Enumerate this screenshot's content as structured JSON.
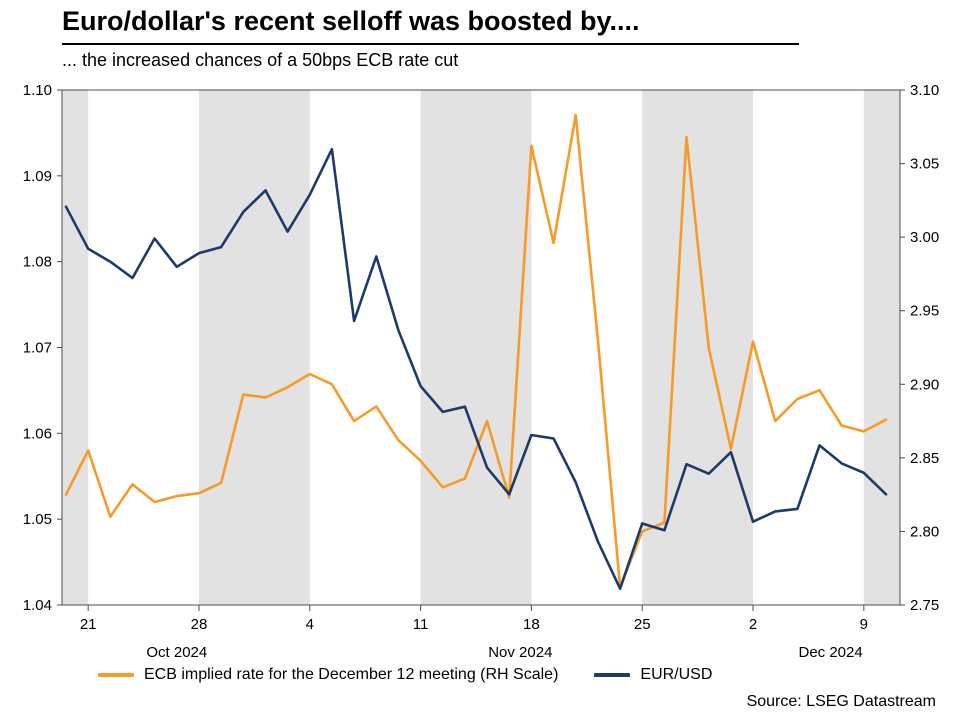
{
  "header": {
    "title": "Euro/dollar's recent selloff was boosted by....",
    "subtitle": "... the increased chances of a 50bps ECB rate cut"
  },
  "footer": {
    "source": "Source: LSEG Datastream"
  },
  "chart_data": {
    "type": "line",
    "title": "Euro/dollar's recent selloff was boosted by....",
    "subtitle": "... the increased chances of a 50bps ECB rate cut",
    "source": "Source: LSEG Datastream",
    "x_dates": [
      "Oct 18",
      "Oct 21",
      "Oct 22",
      "Oct 23",
      "Oct 24",
      "Oct 25",
      "Oct 28",
      "Oct 29",
      "Oct 30",
      "Oct 31",
      "Nov 1",
      "Nov 4",
      "Nov 5",
      "Nov 6",
      "Nov 7",
      "Nov 8",
      "Nov 11",
      "Nov 12",
      "Nov 13",
      "Nov 14",
      "Nov 15",
      "Nov 18",
      "Nov 19",
      "Nov 20",
      "Nov 21",
      "Nov 22",
      "Nov 25",
      "Nov 26",
      "Nov 27",
      "Nov 28",
      "Nov 29",
      "Dec 2",
      "Dec 3",
      "Dec 4",
      "Dec 5",
      "Dec 6",
      "Dec 9",
      "Dec 10"
    ],
    "series": [
      {
        "name": "ECB implied rate for the December 12 meeting (RH Scale)",
        "axis": "right",
        "color": "#F79B28",
        "values": [
          2.825,
          2.855,
          2.81,
          2.832,
          2.82,
          2.824,
          2.826,
          2.833,
          2.893,
          2.891,
          2.898,
          2.907,
          2.9,
          2.875,
          2.885,
          2.862,
          2.848,
          2.83,
          2.836,
          2.875,
          2.823,
          3.062,
          2.996,
          3.083,
          2.93,
          2.762,
          2.8,
          2.806,
          3.068,
          2.925,
          2.856,
          2.929,
          2.875,
          2.89,
          2.896,
          2.872,
          2.868,
          2.876
        ]
      },
      {
        "name": "EUR/USD",
        "axis": "left",
        "color": "#1C3A6A",
        "values": [
          1.0864,
          1.0815,
          1.08,
          1.0781,
          1.0827,
          1.0794,
          1.081,
          1.0817,
          1.0858,
          1.0883,
          1.0835,
          1.0878,
          1.0931,
          1.0731,
          1.0806,
          1.072,
          1.0655,
          1.0625,
          1.0631,
          1.056,
          1.0529,
          1.0598,
          1.0594,
          1.0543,
          1.0474,
          1.0419,
          1.0495,
          1.0487,
          1.0564,
          1.0553,
          1.0578,
          1.0497,
          1.0509,
          1.0512,
          1.0586,
          1.0565,
          1.0554,
          1.0529
        ]
      }
    ],
    "left_axis": {
      "min": 1.04,
      "max": 1.1,
      "step": 0.01,
      "decimals": 2
    },
    "right_axis": {
      "min": 2.75,
      "max": 3.1,
      "step": 0.05,
      "decimals": 2
    },
    "x_ticks": [
      {
        "index": 1,
        "label": "21"
      },
      {
        "index": 6,
        "label": "28"
      },
      {
        "index": 11,
        "label": "4"
      },
      {
        "index": 16,
        "label": "11"
      },
      {
        "index": 21,
        "label": "18"
      },
      {
        "index": 26,
        "label": "25"
      },
      {
        "index": 31,
        "label": "2"
      },
      {
        "index": 36,
        "label": "9"
      }
    ],
    "month_labels": [
      {
        "label": "Oct 2024",
        "center_index": 5
      },
      {
        "label": "Nov 2024",
        "center_index": 20.5
      },
      {
        "label": "Dec 2024",
        "center_index": 34.5
      }
    ],
    "shaded_week_index_ranges": [
      [
        -1,
        1
      ],
      [
        6,
        11
      ],
      [
        16,
        21
      ],
      [
        26,
        31
      ],
      [
        36,
        39
      ]
    ],
    "style": {
      "band_color": "#E2E2E2",
      "frame_color": "#4D4D4D",
      "tick_label_color": "#000000",
      "grid": "off",
      "legend_position": "bottom"
    }
  }
}
